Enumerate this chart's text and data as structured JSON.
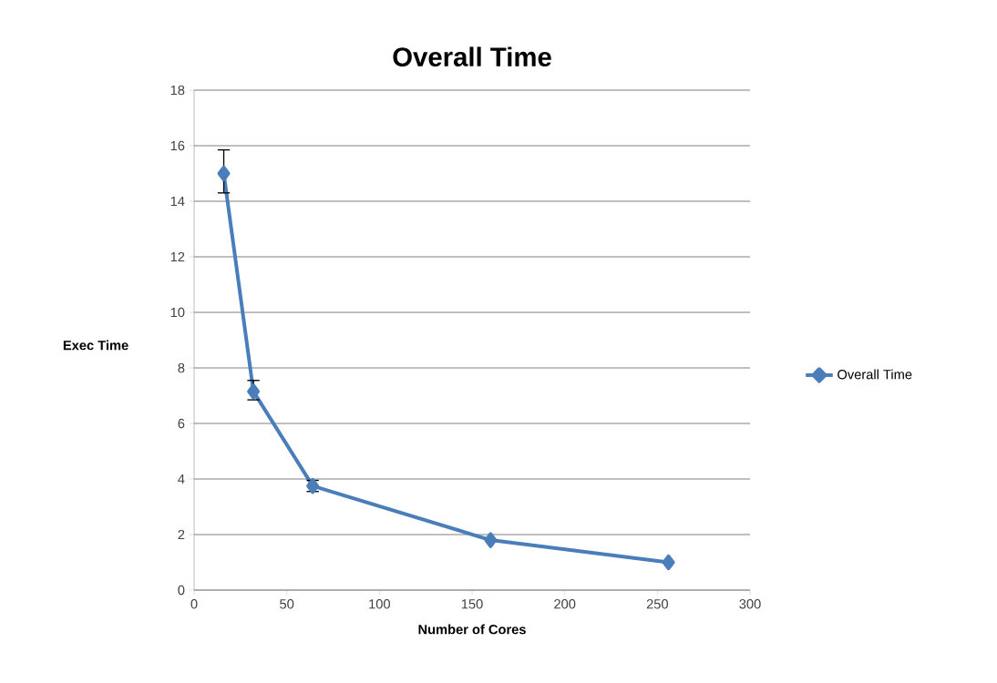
{
  "chart_data": {
    "type": "line",
    "title": "Overall Time",
    "xlabel": "Number of Cores",
    "ylabel": "Exec Time",
    "x": [
      16,
      32,
      64,
      160,
      256
    ],
    "series": [
      {
        "name": "Overall Time",
        "color": "#4a7ebb",
        "values": [
          15.0,
          7.15,
          3.75,
          1.8,
          1.0
        ],
        "errors": [
          [
            14.3,
            15.85
          ],
          [
            6.85,
            7.55
          ],
          0.2,
          null,
          null
        ]
      }
    ],
    "xlim": [
      0,
      300
    ],
    "xticks": [
      0,
      50,
      100,
      150,
      200,
      250,
      300
    ],
    "ylim": [
      0,
      18
    ],
    "yticks": [
      0,
      2,
      4,
      6,
      8,
      10,
      12,
      14,
      16,
      18
    ],
    "grid": "y",
    "legend": "right",
    "marker": "diamond",
    "line_style": "solid"
  }
}
